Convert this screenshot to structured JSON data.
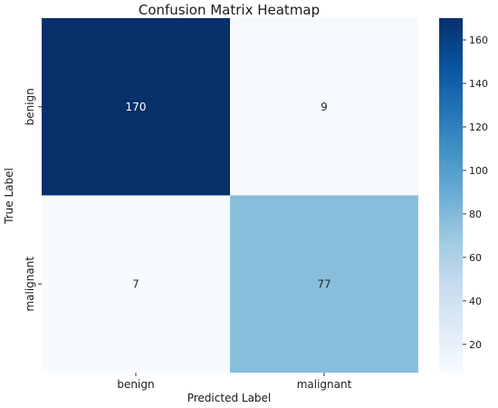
{
  "chart_data": {
    "type": "heatmap",
    "title": "Confusion Matrix Heatmap",
    "xlabel": "Predicted Label",
    "ylabel": "True Label",
    "x_categories": [
      "benign",
      "malignant"
    ],
    "y_categories": [
      "benign",
      "malignant"
    ],
    "values": [
      [
        170,
        9
      ],
      [
        7,
        77
      ]
    ],
    "colorbar": {
      "range": [
        7,
        170
      ],
      "ticks": [
        20,
        40,
        60,
        80,
        100,
        120,
        140,
        160
      ]
    },
    "colormap": [
      "#f7fbff",
      "#deebf7",
      "#c6dbef",
      "#9ecae1",
      "#6baed6",
      "#4292c6",
      "#2171b5",
      "#08519c",
      "#08306b"
    ],
    "colors": {
      "dark_text": "#262626",
      "light_text": "#ffffff"
    }
  }
}
